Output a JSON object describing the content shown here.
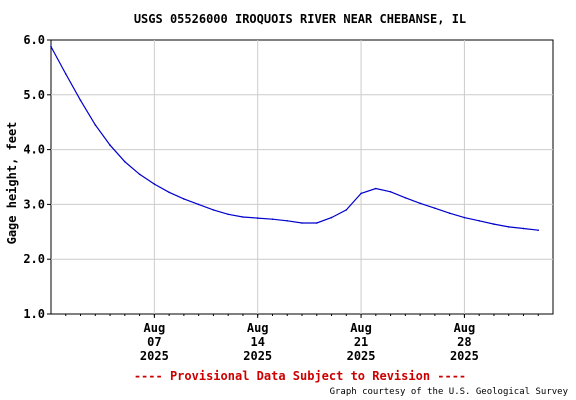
{
  "chart_data": {
    "type": "line",
    "title": "USGS 05526000 IROQUOIS RIVER NEAR CHEBANSE, IL",
    "ylabel": "Gage height, feet",
    "xlabel": "",
    "ylim": [
      1.0,
      6.0
    ],
    "y_ticks": [
      "1.0",
      "2.0",
      "3.0",
      "4.0",
      "5.0",
      "6.0"
    ],
    "xlim": [
      "2025-07-31",
      "2025-09-03"
    ],
    "x_ticks": [
      {
        "date": "2025-08-07",
        "lines": [
          "Aug",
          "07",
          "2025"
        ]
      },
      {
        "date": "2025-08-14",
        "lines": [
          "Aug",
          "14",
          "2025"
        ]
      },
      {
        "date": "2025-08-21",
        "lines": [
          "Aug",
          "21",
          "2025"
        ]
      },
      {
        "date": "2025-08-28",
        "lines": [
          "Aug",
          "28",
          "2025"
        ]
      }
    ],
    "grid": true,
    "line_color": "#0000cc",
    "series": [
      {
        "x": [
          "2025-07-31",
          "2025-08-01",
          "2025-08-02",
          "2025-08-03",
          "2025-08-04",
          "2025-08-05",
          "2025-08-06",
          "2025-08-07",
          "2025-08-08",
          "2025-08-09",
          "2025-08-10",
          "2025-08-11",
          "2025-08-12",
          "2025-08-13",
          "2025-08-14",
          "2025-08-15",
          "2025-08-16",
          "2025-08-17",
          "2025-08-18",
          "2025-08-19",
          "2025-08-20",
          "2025-08-21",
          "2025-08-22",
          "2025-08-23",
          "2025-08-24",
          "2025-08-25",
          "2025-08-26",
          "2025-08-27",
          "2025-08-28",
          "2025-08-29",
          "2025-08-30",
          "2025-08-31",
          "2025-09-01",
          "2025-09-02"
        ],
        "values": [
          5.88,
          5.38,
          4.9,
          4.45,
          4.08,
          3.78,
          3.55,
          3.37,
          3.22,
          3.1,
          3.0,
          2.9,
          2.82,
          2.77,
          2.75,
          2.73,
          2.7,
          2.66,
          2.66,
          2.76,
          2.9,
          3.2,
          3.29,
          3.23,
          3.12,
          3.02,
          2.93,
          2.84,
          2.76,
          2.7,
          2.64,
          2.59,
          2.56,
          2.53
        ]
      }
    ]
  },
  "footer": {
    "provisional": "---- Provisional Data Subject to Revision ----",
    "credit": "Graph courtesy of the U.S. Geological Survey"
  },
  "colors": {
    "provisional": "#cc0000",
    "grid": "#cccccc",
    "axes": "#000000"
  }
}
